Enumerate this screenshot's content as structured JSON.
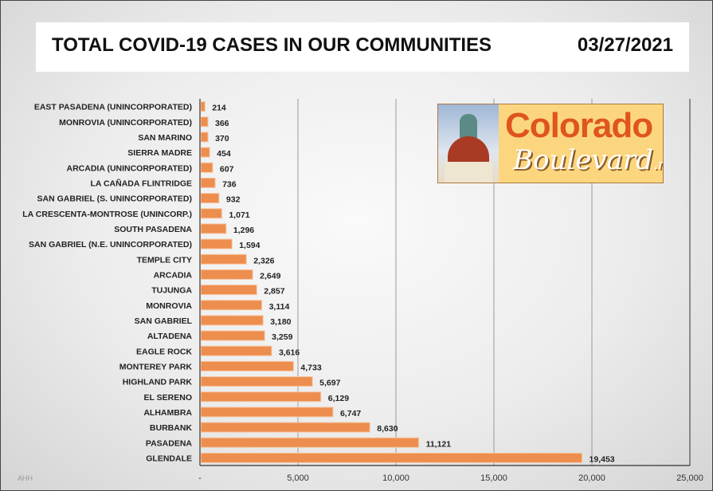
{
  "header": {
    "title": "TOTAL COVID-19 CASES IN OUR COMMUNITIES",
    "date": "03/27/2021"
  },
  "logo": {
    "line1": "Colorado",
    "line2": "Boulevard",
    "suffix": ".net"
  },
  "watermark": "AHH",
  "colors": {
    "bar": "#ED8E4E",
    "bar_border": "#F6C7A5",
    "grid": "#9a9a9a"
  },
  "chart_data": {
    "type": "bar",
    "orientation": "horizontal",
    "title": "TOTAL COVID-19 CASES IN OUR COMMUNITIES",
    "categories": [
      "EAST PASADENA (UNINCORPORATED)",
      "MONROVIA  (UNINCORPORATED)",
      "SAN MARINO",
      "SIERRA MADRE",
      "ARCADIA (UNINCORPORATED)",
      "LA CAÑADA FLINTRIDGE",
      "SAN GABRIEL (S. UNINCORPORATED)",
      "LA CRESCENTA-MONTROSE (UNINCORP.)",
      "SOUTH PASADENA",
      "SAN GABRIEL (N.E. UNINCORPORATED)",
      "TEMPLE CITY",
      "ARCADIA",
      "TUJUNGA",
      "MONROVIA",
      "SAN GABRIEL",
      "ALTADENA",
      "EAGLE ROCK",
      "MONTEREY PARK",
      "HIGHLAND PARK",
      "EL SERENO",
      "ALHAMBRA",
      "BURBANK",
      "PASADENA",
      "GLENDALE"
    ],
    "values": [
      214,
      366,
      370,
      454,
      607,
      736,
      932,
      1071,
      1296,
      1594,
      2326,
      2649,
      2857,
      3114,
      3180,
      3259,
      3616,
      4733,
      5697,
      6129,
      6747,
      8630,
      11121,
      19453
    ],
    "value_labels": [
      "214",
      "366",
      "370",
      "454",
      "607",
      "736",
      "932",
      "1,071",
      "1,296",
      "1,594",
      "2,326",
      "2,649",
      "2,857",
      "3,114",
      "3,180",
      "3,259",
      "3,616",
      "4,733",
      "5,697",
      "6,129",
      "6,747",
      "8,630",
      "11,121",
      "19,453"
    ],
    "xlim": [
      0,
      25000
    ],
    "xticks": [
      0,
      5000,
      10000,
      15000,
      20000,
      25000
    ],
    "xtick_labels": [
      "-",
      "5,000",
      "10,000",
      "15,000",
      "20,000",
      "25,000"
    ],
    "grid": true,
    "legend": "none"
  }
}
